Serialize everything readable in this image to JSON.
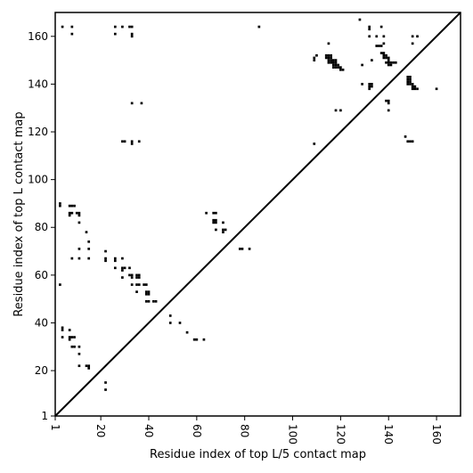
{
  "chart_data": {
    "type": "scatter",
    "title": "",
    "xlabel": "Residue index of top L/5 contact map",
    "ylabel": "Residue index of top L contact map",
    "xlim": [
      1,
      170
    ],
    "ylim": [
      1,
      170
    ],
    "xticks": [
      1,
      20,
      40,
      60,
      80,
      100,
      120,
      140,
      160
    ],
    "yticks": [
      1,
      20,
      40,
      60,
      80,
      100,
      120,
      140,
      160
    ],
    "grid": false,
    "diagonal_line": true,
    "marker_color": "#000000",
    "points": [
      [
        4,
        164
      ],
      [
        8,
        164
      ],
      [
        8,
        161
      ],
      [
        26,
        164
      ],
      [
        26,
        161
      ],
      [
        29,
        164
      ],
      [
        32,
        164
      ],
      [
        33,
        164
      ],
      [
        33,
        161
      ],
      [
        33,
        160
      ],
      [
        86,
        164
      ],
      [
        3,
        90
      ],
      [
        3,
        89
      ],
      [
        7,
        89
      ],
      [
        8,
        89
      ],
      [
        9,
        89
      ],
      [
        7,
        86
      ],
      [
        7,
        85
      ],
      [
        8,
        86
      ],
      [
        10,
        86
      ],
      [
        11,
        86
      ],
      [
        11,
        85
      ],
      [
        11,
        82
      ],
      [
        8,
        67
      ],
      [
        11,
        71
      ],
      [
        11,
        67
      ],
      [
        14,
        78
      ],
      [
        15,
        74
      ],
      [
        15,
        71
      ],
      [
        15,
        67
      ],
      [
        3,
        56
      ],
      [
        22,
        70
      ],
      [
        22,
        67
      ],
      [
        22,
        66
      ],
      [
        26,
        67
      ],
      [
        26,
        66
      ],
      [
        26,
        63
      ],
      [
        29,
        67
      ],
      [
        29,
        63
      ],
      [
        29,
        62
      ],
      [
        29,
        59
      ],
      [
        30,
        63
      ],
      [
        32,
        63
      ],
      [
        32,
        60
      ],
      [
        33,
        60
      ],
      [
        33,
        59
      ],
      [
        33,
        56
      ],
      [
        35,
        60
      ],
      [
        35,
        59
      ],
      [
        36,
        60
      ],
      [
        36,
        59
      ],
      [
        35,
        56
      ],
      [
        36,
        56
      ],
      [
        35,
        53
      ],
      [
        38,
        56
      ],
      [
        39,
        56
      ],
      [
        39,
        53
      ],
      [
        39,
        52
      ],
      [
        40,
        53
      ],
      [
        40,
        52
      ],
      [
        39,
        49
      ],
      [
        40,
        49
      ],
      [
        42,
        49
      ],
      [
        43,
        49
      ],
      [
        4,
        38
      ],
      [
        4,
        37
      ],
      [
        4,
        34
      ],
      [
        7,
        37
      ],
      [
        7,
        34
      ],
      [
        7,
        33
      ],
      [
        8,
        34
      ],
      [
        8,
        30
      ],
      [
        9,
        34
      ],
      [
        9,
        30
      ],
      [
        11,
        30
      ],
      [
        11,
        27
      ],
      [
        11,
        22
      ],
      [
        14,
        22
      ],
      [
        15,
        21
      ],
      [
        15,
        22
      ],
      [
        22,
        15
      ],
      [
        22,
        12
      ],
      [
        29,
        116
      ],
      [
        30,
        116
      ],
      [
        33,
        116
      ],
      [
        33,
        115
      ],
      [
        36,
        116
      ],
      [
        33,
        132
      ],
      [
        37,
        132
      ],
      [
        49,
        43
      ],
      [
        49,
        40
      ],
      [
        53,
        40
      ],
      [
        56,
        36
      ],
      [
        59,
        33
      ],
      [
        60,
        33
      ],
      [
        63,
        33
      ],
      [
        64,
        86
      ],
      [
        67,
        86
      ],
      [
        68,
        86
      ],
      [
        67,
        83
      ],
      [
        67,
        82
      ],
      [
        68,
        83
      ],
      [
        68,
        82
      ],
      [
        68,
        79
      ],
      [
        71,
        82
      ],
      [
        71,
        79
      ],
      [
        71,
        78
      ],
      [
        72,
        79
      ],
      [
        78,
        71
      ],
      [
        79,
        71
      ],
      [
        82,
        71
      ],
      [
        109,
        151
      ],
      [
        109,
        150
      ],
      [
        110,
        152
      ],
      [
        109,
        115
      ],
      [
        115,
        157
      ],
      [
        114,
        152
      ],
      [
        115,
        152
      ],
      [
        116,
        152
      ],
      [
        114,
        151
      ],
      [
        115,
        151
      ],
      [
        116,
        151
      ],
      [
        115,
        150
      ],
      [
        116,
        150
      ],
      [
        117,
        150
      ],
      [
        118,
        150
      ],
      [
        115,
        149
      ],
      [
        116,
        149
      ],
      [
        117,
        149
      ],
      [
        118,
        149
      ],
      [
        117,
        148
      ],
      [
        118,
        148
      ],
      [
        117,
        147
      ],
      [
        118,
        147
      ],
      [
        119,
        148
      ],
      [
        119,
        147
      ],
      [
        120,
        147
      ],
      [
        120,
        146
      ],
      [
        121,
        146
      ],
      [
        118,
        129
      ],
      [
        120,
        129
      ],
      [
        128,
        167
      ],
      [
        129,
        148
      ],
      [
        129,
        140
      ],
      [
        132,
        164
      ],
      [
        132,
        163
      ],
      [
        132,
        160
      ],
      [
        133,
        150
      ],
      [
        132,
        140
      ],
      [
        133,
        140
      ],
      [
        132,
        139
      ],
      [
        133,
        139
      ],
      [
        132,
        138
      ],
      [
        135,
        160
      ],
      [
        135,
        156
      ],
      [
        136,
        156
      ],
      [
        137,
        156
      ],
      [
        137,
        164
      ],
      [
        138,
        160
      ],
      [
        138,
        157
      ],
      [
        137,
        153
      ],
      [
        138,
        153
      ],
      [
        138,
        152
      ],
      [
        139,
        152
      ],
      [
        138,
        151
      ],
      [
        139,
        151
      ],
      [
        140,
        151
      ],
      [
        140,
        150
      ],
      [
        139,
        149
      ],
      [
        140,
        149
      ],
      [
        141,
        149
      ],
      [
        140,
        148
      ],
      [
        141,
        148
      ],
      [
        142,
        149
      ],
      [
        143,
        149
      ],
      [
        139,
        133
      ],
      [
        140,
        133
      ],
      [
        140,
        132
      ],
      [
        140,
        129
      ],
      [
        147,
        118
      ],
      [
        148,
        116
      ],
      [
        149,
        116
      ],
      [
        150,
        116
      ],
      [
        148,
        143
      ],
      [
        149,
        143
      ],
      [
        148,
        142
      ],
      [
        149,
        142
      ],
      [
        148,
        141
      ],
      [
        149,
        141
      ],
      [
        148,
        140
      ],
      [
        149,
        140
      ],
      [
        150,
        140
      ],
      [
        150,
        139
      ],
      [
        151,
        139
      ],
      [
        150,
        138
      ],
      [
        151,
        138
      ],
      [
        152,
        138
      ],
      [
        150,
        160
      ],
      [
        150,
        157
      ],
      [
        152,
        160
      ],
      [
        160,
        138
      ]
    ]
  }
}
